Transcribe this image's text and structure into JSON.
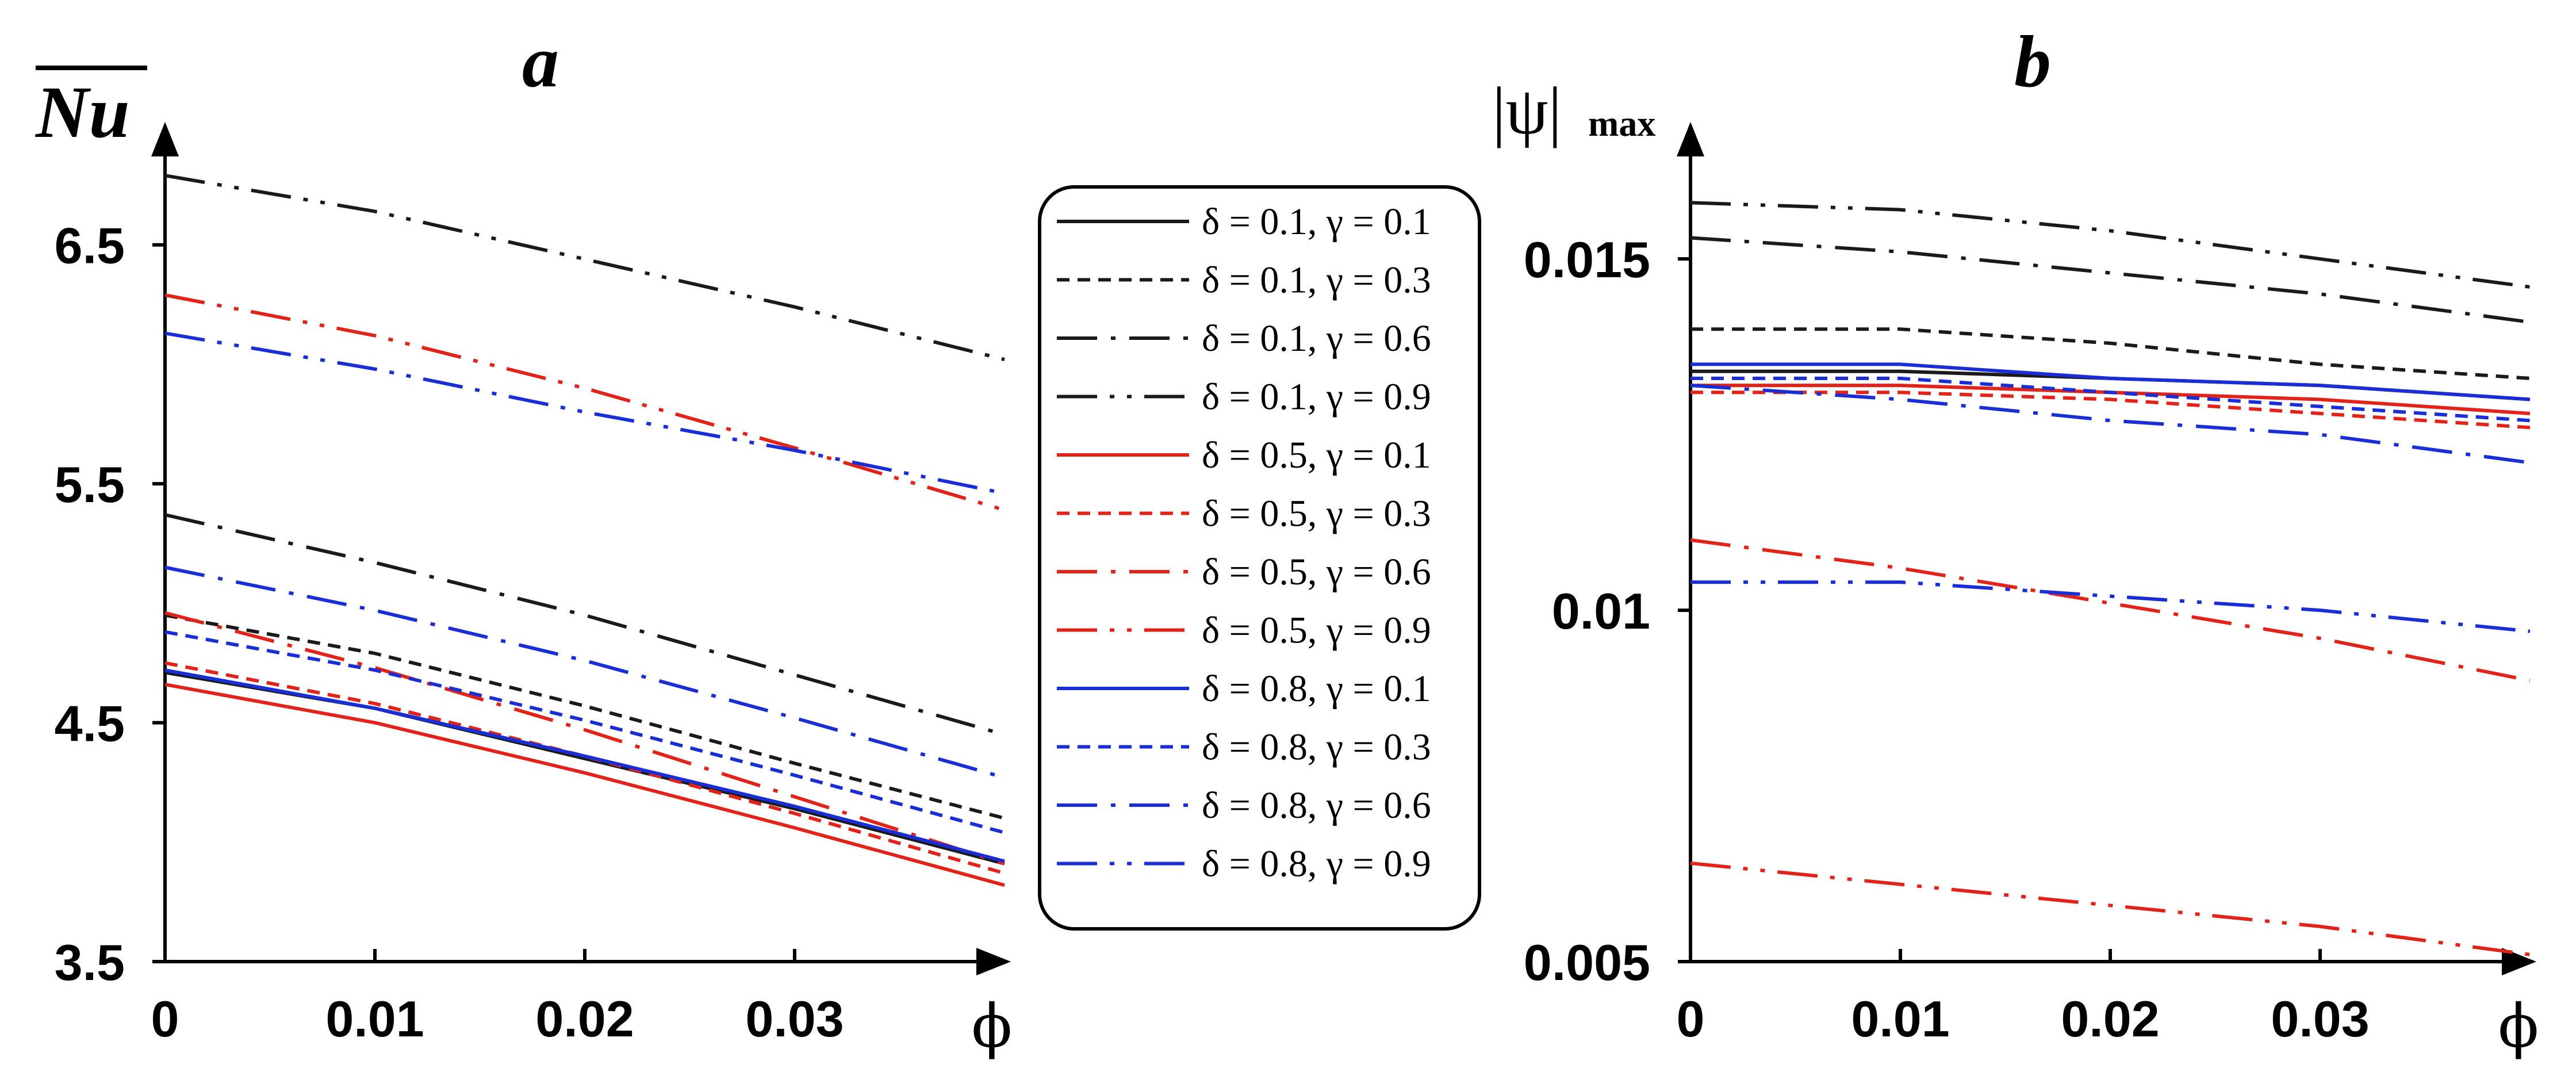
{
  "colors": {
    "black": "#1a1a1a",
    "red": "#e2231a",
    "blue": "#1a2ed6"
  },
  "legend": [
    {
      "label": "δ = 0.1, γ = 0.1",
      "color": "black",
      "dash": "solid"
    },
    {
      "label": "δ = 0.1, γ = 0.3",
      "color": "black",
      "dash": "dash"
    },
    {
      "label": "δ = 0.1, γ = 0.6",
      "color": "black",
      "dash": "dashdot"
    },
    {
      "label": "δ = 0.1, γ = 0.9",
      "color": "black",
      "dash": "dashdotdot"
    },
    {
      "label": "δ = 0.5, γ = 0.1",
      "color": "red",
      "dash": "solid"
    },
    {
      "label": "δ = 0.5, γ = 0.3",
      "color": "red",
      "dash": "dash"
    },
    {
      "label": "δ = 0.5, γ = 0.6",
      "color": "red",
      "dash": "dashdot"
    },
    {
      "label": "δ = 0.5, γ = 0.9",
      "color": "red",
      "dash": "dashdotdot"
    },
    {
      "label": "δ = 0.8, γ = 0.1",
      "color": "blue",
      "dash": "solid"
    },
    {
      "label": "δ = 0.8, γ = 0.3",
      "color": "blue",
      "dash": "dash"
    },
    {
      "label": "δ = 0.8, γ = 0.6",
      "color": "blue",
      "dash": "dashdot"
    },
    {
      "label": "δ = 0.8, γ = 0.9",
      "color": "blue",
      "dash": "dashdotdot"
    }
  ],
  "chart_data": [
    {
      "panel": "a",
      "type": "line",
      "title": "a",
      "ylabel": "Nu",
      "xlabel": "ϕ",
      "x": [
        0,
        0.01,
        0.02,
        0.03,
        0.04
      ],
      "xlim": [
        0,
        0.04
      ],
      "ylim": [
        3.5,
        7.0
      ],
      "xticks": [
        0,
        0.01,
        0.02,
        0.03
      ],
      "xtick_labels": [
        "0",
        "0.01",
        "0.02",
        "0.03"
      ],
      "yticks": [
        3.5,
        4.5,
        5.5,
        6.5
      ],
      "ytick_labels": [
        "3.5",
        "4.5",
        "5.5",
        "6.5"
      ],
      "series": [
        {
          "name": "δ = 0.1, γ = 0.1",
          "values": [
            4.71,
            4.56,
            4.35,
            4.14,
            3.91
          ]
        },
        {
          "name": "δ = 0.1, γ = 0.3",
          "values": [
            4.95,
            4.79,
            4.57,
            4.33,
            4.1
          ]
        },
        {
          "name": "δ = 0.1, γ = 0.6",
          "values": [
            5.37,
            5.17,
            4.95,
            4.7,
            4.45
          ]
        },
        {
          "name": "δ = 0.1, γ = 0.9",
          "values": [
            6.79,
            6.64,
            6.44,
            6.24,
            6.02
          ]
        },
        {
          "name": "δ = 0.5, γ = 0.1",
          "values": [
            4.66,
            4.5,
            4.29,
            4.06,
            3.82
          ]
        },
        {
          "name": "δ = 0.5, γ = 0.3",
          "values": [
            4.75,
            4.58,
            4.36,
            4.12,
            3.87
          ]
        },
        {
          "name": "δ = 0.5, γ = 0.6",
          "values": [
            4.96,
            4.73,
            4.47,
            4.19,
            3.91
          ]
        },
        {
          "name": "δ = 0.5, γ = 0.9",
          "values": [
            6.29,
            6.12,
            5.9,
            5.65,
            5.39
          ]
        },
        {
          "name": "δ = 0.8, γ = 0.1",
          "values": [
            4.72,
            4.56,
            4.36,
            4.15,
            3.92
          ]
        },
        {
          "name": "δ = 0.8, γ = 0.3",
          "values": [
            4.88,
            4.72,
            4.51,
            4.28,
            4.04
          ]
        },
        {
          "name": "δ = 0.8, γ = 0.6",
          "values": [
            5.15,
            4.97,
            4.76,
            4.52,
            4.27
          ]
        },
        {
          "name": "δ = 0.8, γ = 0.9",
          "values": [
            6.13,
            5.98,
            5.8,
            5.64,
            5.46
          ]
        }
      ]
    },
    {
      "panel": "b",
      "type": "line",
      "title": "b",
      "ylabel": "|ψ|",
      "ylabel_sub": "max",
      "xlabel": "ϕ",
      "x": [
        0,
        0.01,
        0.02,
        0.03,
        0.04
      ],
      "xlim": [
        0,
        0.04
      ],
      "ylim": [
        0.005,
        0.0169
      ],
      "xticks": [
        0,
        0.01,
        0.02,
        0.03
      ],
      "xtick_labels": [
        "0",
        "0.01",
        "0.02",
        "0.03"
      ],
      "yticks": [
        0.005,
        0.01,
        0.015
      ],
      "ytick_labels": [
        "0.005",
        "0.01",
        "0.015"
      ],
      "series": [
        {
          "name": "δ = 0.1, γ = 0.1",
          "values": [
            0.0134,
            0.0134,
            0.0133,
            0.0132,
            0.013
          ]
        },
        {
          "name": "δ = 0.1, γ = 0.3",
          "values": [
            0.014,
            0.014,
            0.0138,
            0.0135,
            0.0133
          ]
        },
        {
          "name": "δ = 0.1, γ = 0.6",
          "values": [
            0.0153,
            0.0151,
            0.0148,
            0.0145,
            0.0141
          ]
        },
        {
          "name": "δ = 0.1, γ = 0.9",
          "values": [
            0.0158,
            0.0157,
            0.0154,
            0.015,
            0.0146
          ]
        },
        {
          "name": "δ = 0.5, γ = 0.1",
          "values": [
            0.0132,
            0.0132,
            0.0131,
            0.013,
            0.0128
          ]
        },
        {
          "name": "δ = 0.5, γ = 0.3",
          "values": [
            0.0131,
            0.0131,
            0.013,
            0.0128,
            0.0126
          ]
        },
        {
          "name": "δ = 0.5, γ = 0.6",
          "values": [
            0.011,
            0.0106,
            0.0101,
            0.0096,
            0.009
          ]
        },
        {
          "name": "δ = 0.5, γ = 0.9",
          "values": [
            0.0064,
            0.0061,
            0.0058,
            0.0055,
            0.0051
          ]
        },
        {
          "name": "δ = 0.8, γ = 0.1",
          "values": [
            0.0135,
            0.0135,
            0.0133,
            0.0132,
            0.013
          ]
        },
        {
          "name": "δ = 0.8, γ = 0.3",
          "values": [
            0.0133,
            0.0133,
            0.0131,
            0.0129,
            0.0127
          ]
        },
        {
          "name": "δ = 0.8, γ = 0.6",
          "values": [
            0.0132,
            0.013,
            0.0127,
            0.0125,
            0.0121
          ]
        },
        {
          "name": "δ = 0.8, γ = 0.9",
          "values": [
            0.0104,
            0.0104,
            0.0102,
            0.01,
            0.0097
          ]
        }
      ]
    }
  ]
}
